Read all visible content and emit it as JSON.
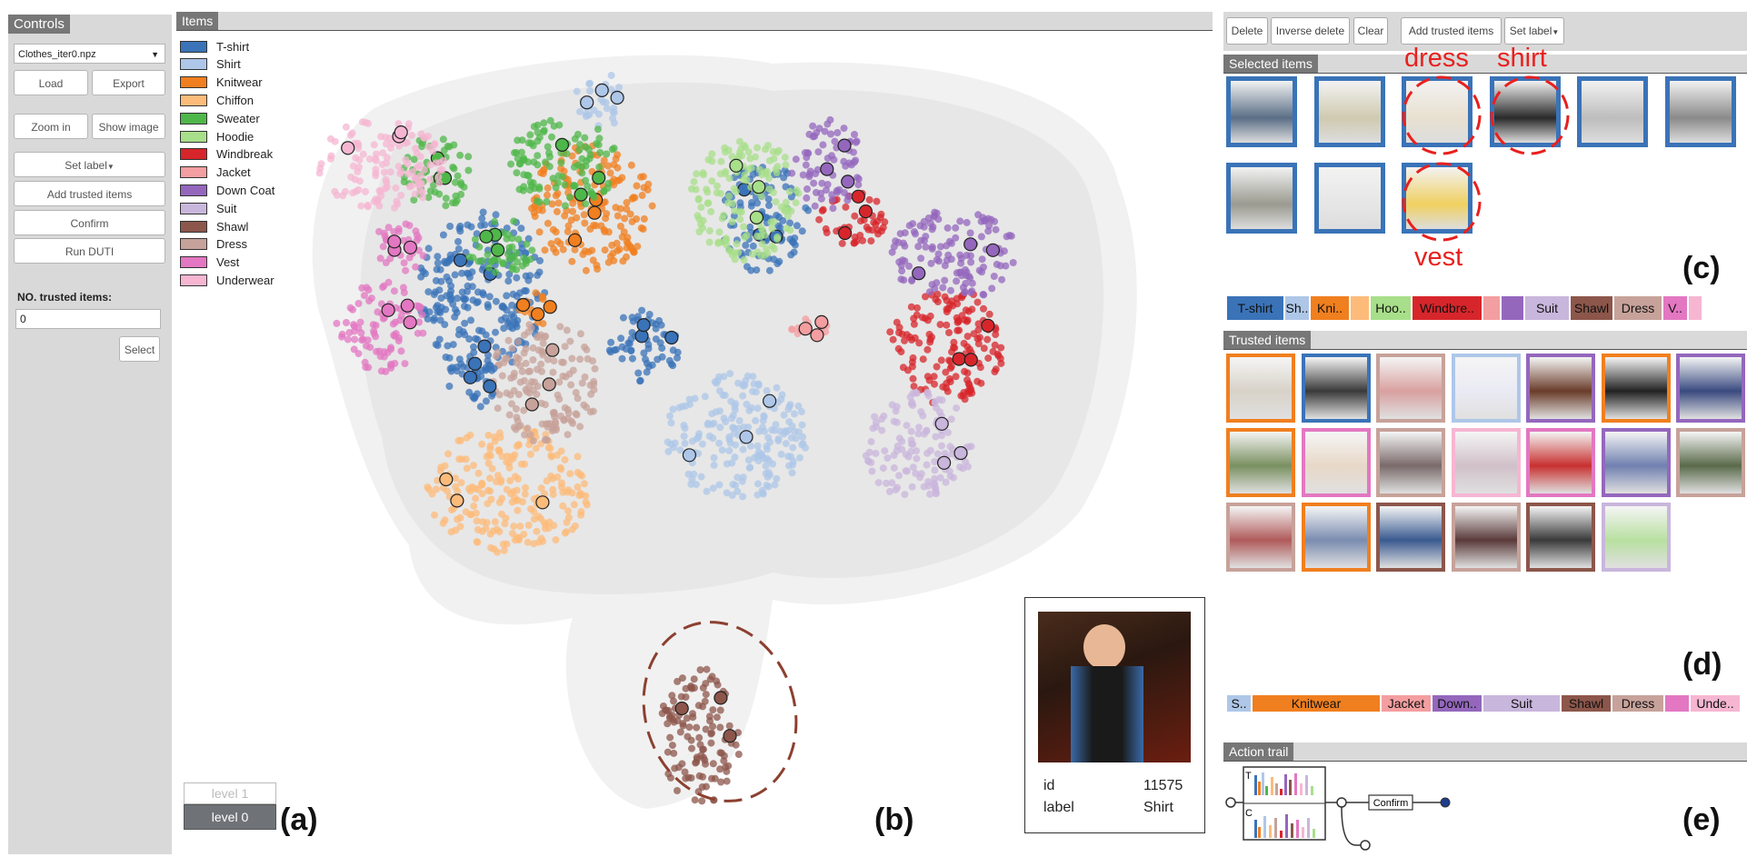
{
  "controls": {
    "title": "Controls",
    "dataset_select": "Clothes_iter0.npz",
    "load": "Load",
    "export": "Export",
    "zoom_in": "Zoom in",
    "show_image": "Show image",
    "set_label": "Set label",
    "add_trusted": "Add trusted items",
    "confirm": "Confirm",
    "run_duti": "Run DUTI",
    "trusted_count_label": "NO. trusted items:",
    "trusted_count_value": "0",
    "select": "Select"
  },
  "items_panel": {
    "title": "Items",
    "legend": [
      {
        "label": "T-shirt",
        "color": "#3a73b8"
      },
      {
        "label": "Shirt",
        "color": "#aec7e8"
      },
      {
        "label": "Knitwear",
        "color": "#f07f1f"
      },
      {
        "label": "Chiffon",
        "color": "#fdbb7a"
      },
      {
        "label": "Sweater",
        "color": "#4fb74a"
      },
      {
        "label": "Hoodie",
        "color": "#a8df8a"
      },
      {
        "label": "Windbreak",
        "color": "#d7262b"
      },
      {
        "label": "Jacket",
        "color": "#f39ea0"
      },
      {
        "label": "Down Coat",
        "color": "#9467bd"
      },
      {
        "label": "Suit",
        "color": "#c9b6dc"
      },
      {
        "label": "Shawl",
        "color": "#8c564b"
      },
      {
        "label": "Dress",
        "color": "#c7a29a"
      },
      {
        "label": "Vest",
        "color": "#e377c2"
      },
      {
        "label": "Underwear",
        "color": "#f6b6d2"
      }
    ],
    "levels": [
      "level 1",
      "level 0"
    ]
  },
  "tooltip": {
    "id_label": "id",
    "id_value": "11575",
    "label_label": "label",
    "label_value": "Shirt"
  },
  "right_panel": {
    "buttons": {
      "delete": "Delete",
      "inverse_delete": "Inverse delete",
      "clear": "Clear",
      "add_trusted": "Add trusted items",
      "set_label": "Set label"
    },
    "selected_title": "Selected items",
    "selected_annotations": [
      "dress",
      "shirt",
      "vest"
    ],
    "selected_label_strip": [
      {
        "label": "T-shirt",
        "color": "#3a73b8"
      },
      {
        "label": "Sh..",
        "color": "#aec7e8"
      },
      {
        "label": "Kni..",
        "color": "#f07f1f"
      },
      {
        "label": "",
        "color": "#fdbb7a"
      },
      {
        "label": "Hoo..",
        "color": "#a8df8a"
      },
      {
        "label": "Windbre..",
        "color": "#d7262b"
      },
      {
        "label": "",
        "color": "#f39ea0"
      },
      {
        "label": "",
        "color": "#9467bd"
      },
      {
        "label": "Suit",
        "color": "#c9b6dc"
      },
      {
        "label": "Shawl",
        "color": "#8c564b"
      },
      {
        "label": "Dress",
        "color": "#c7a29a"
      },
      {
        "label": "V..",
        "color": "#e377c2"
      },
      {
        "label": "",
        "color": "#f6b6d2"
      }
    ],
    "trusted_title": "Trusted items",
    "trusted_label_strip": [
      {
        "label": "S..",
        "color": "#aec7e8"
      },
      {
        "label": "Knitwear",
        "color": "#f07f1f"
      },
      {
        "label": "Jacket",
        "color": "#f39ea0"
      },
      {
        "label": "Down..",
        "color": "#9467bd"
      },
      {
        "label": "Suit",
        "color": "#c9b6dc"
      },
      {
        "label": "Shawl",
        "color": "#8c564b"
      },
      {
        "label": "Dress",
        "color": "#c7a29a"
      },
      {
        "label": "",
        "color": "#e377c2"
      },
      {
        "label": "Unde..",
        "color": "#f6b6d2"
      }
    ],
    "action_trail_title": "Action trail",
    "trail_node_confirm": "Confirm",
    "trail_letters": [
      "T",
      "C"
    ]
  },
  "panel_letters": [
    "(a)",
    "(b)",
    "(c)",
    "(d)",
    "(e)"
  ]
}
